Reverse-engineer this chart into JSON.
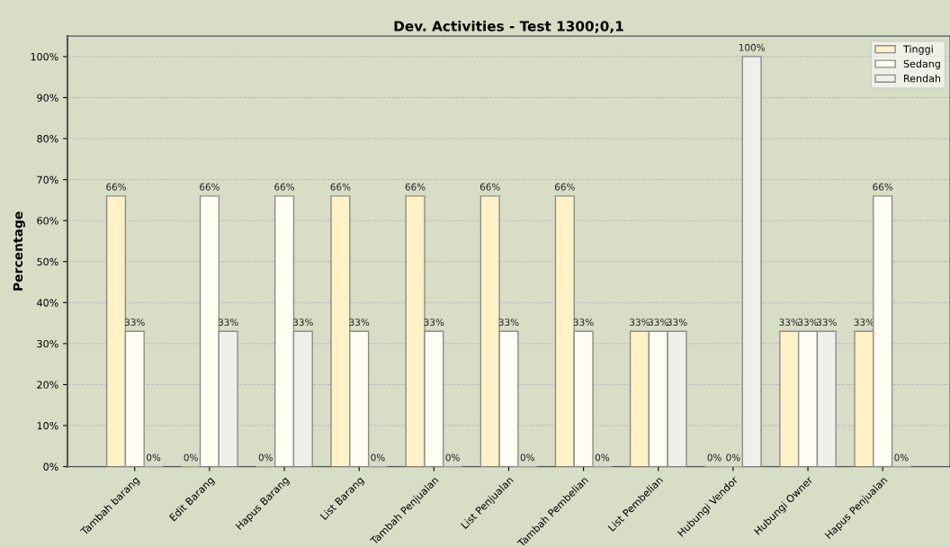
{
  "chart_data": {
    "type": "bar",
    "title": "Dev. Activities - Test 1300;0,1",
    "ylabel": "Percentage",
    "categories": [
      "Tambah barang",
      "Edit Barang",
      "Hapus Barang",
      "List Barang",
      "Tambah Penjualan",
      "List Penjualan",
      "Tambah Pembelian",
      "List Pembelian",
      "Hubungi Vendor",
      "Hubungi Owner",
      "Hapus Penjualan"
    ],
    "series": [
      {
        "name": "Tinggi",
        "color": "#fff2c6",
        "values": [
          66,
          0,
          0,
          66,
          66,
          66,
          66,
          33,
          0,
          33,
          33
        ],
        "value_labels": [
          "66%",
          "0%",
          "0%",
          "66%",
          "66%",
          "66%",
          "66%",
          "33%",
          "0%",
          "33%",
          "33%"
        ]
      },
      {
        "name": "Sedang",
        "color": "#fffdf2",
        "values": [
          33,
          66,
          66,
          33,
          33,
          33,
          33,
          33,
          0,
          33,
          66
        ],
        "value_labels": [
          "33%",
          "66%",
          "66%",
          "33%",
          "33%",
          "33%",
          "33%",
          "33%",
          "0%",
          "33%",
          "66%"
        ]
      },
      {
        "name": "Rendah",
        "color": "#eef1ea",
        "values": [
          0,
          33,
          33,
          0,
          0,
          0,
          0,
          33,
          100,
          33,
          0
        ],
        "value_labels": [
          "0%",
          "33%",
          "33%",
          "0%",
          "0%",
          "0%",
          "0%",
          "33%",
          "100%",
          "33%",
          "0%"
        ]
      }
    ],
    "ylim": [
      0,
      105
    ],
    "yticks": [
      {
        "value": 0,
        "label": "0%"
      },
      {
        "value": 10,
        "label": "10%"
      },
      {
        "value": 20,
        "label": "20%"
      },
      {
        "value": 30,
        "label": "30%"
      },
      {
        "value": 40,
        "label": "40%"
      },
      {
        "value": 50,
        "label": "50%"
      },
      {
        "value": 60,
        "label": "60%"
      },
      {
        "value": 70,
        "label": "70%"
      },
      {
        "value": 80,
        "label": "80%"
      },
      {
        "value": 90,
        "label": "90%"
      },
      {
        "value": 100,
        "label": "100%"
      }
    ],
    "grid": "y",
    "legend": "top right"
  }
}
